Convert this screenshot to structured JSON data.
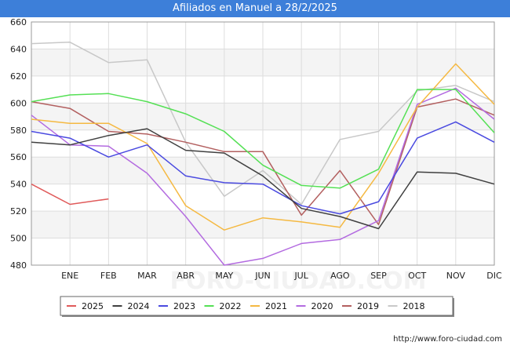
{
  "title": "Afiliados en Manuel a 28/2/2025",
  "attribution": "http://www.foro-ciudad.com",
  "watermark": "FORO-CIUDAD.COM",
  "chart_data": {
    "type": "line",
    "categories": [
      "",
      "ENE",
      "FEB",
      "MAR",
      "ABR",
      "MAY",
      "JUN",
      "JUL",
      "AGO",
      "SEP",
      "OCT",
      "NOV",
      "DIC"
    ],
    "ylim": [
      480,
      660
    ],
    "yticks": [
      480,
      500,
      520,
      540,
      560,
      580,
      600,
      620,
      640,
      660
    ],
    "grid": true,
    "legend_position": "bottom",
    "series": [
      {
        "name": "2025",
        "color": "#e05a5a",
        "values": [
          540,
          525,
          529,
          null,
          null,
          null,
          null,
          null,
          null,
          null,
          null,
          null,
          null
        ]
      },
      {
        "name": "2024",
        "color": "#404040",
        "values": [
          571,
          569,
          576,
          581,
          565,
          563,
          546,
          522,
          516,
          507,
          549,
          548,
          540
        ]
      },
      {
        "name": "2023",
        "color": "#4a4ae0",
        "values": [
          579,
          574,
          560,
          569,
          546,
          541,
          540,
          524,
          518,
          527,
          574,
          586,
          571
        ]
      },
      {
        "name": "2022",
        "color": "#55e055",
        "values": [
          601,
          606,
          607,
          601,
          592,
          579,
          554,
          539,
          537,
          551,
          610,
          610,
          578
        ]
      },
      {
        "name": "2021",
        "color": "#f5b942",
        "values": [
          588,
          585,
          585,
          570,
          524,
          506,
          515,
          512,
          508,
          548,
          597,
          629,
          599
        ]
      },
      {
        "name": "2020",
        "color": "#b36be0",
        "values": [
          591,
          569,
          568,
          548,
          516,
          480,
          485,
          496,
          499,
          513,
          599,
          611,
          588
        ]
      },
      {
        "name": "2019",
        "color": "#b36060",
        "values": [
          601,
          596,
          579,
          577,
          571,
          564,
          564,
          517,
          550,
          510,
          597,
          603,
          591
        ]
      },
      {
        "name": "2018",
        "color": "#c8c8c8",
        "values": [
          644,
          645,
          630,
          632,
          571,
          531,
          550,
          525,
          573,
          579,
          609,
          613,
          601
        ]
      }
    ]
  }
}
